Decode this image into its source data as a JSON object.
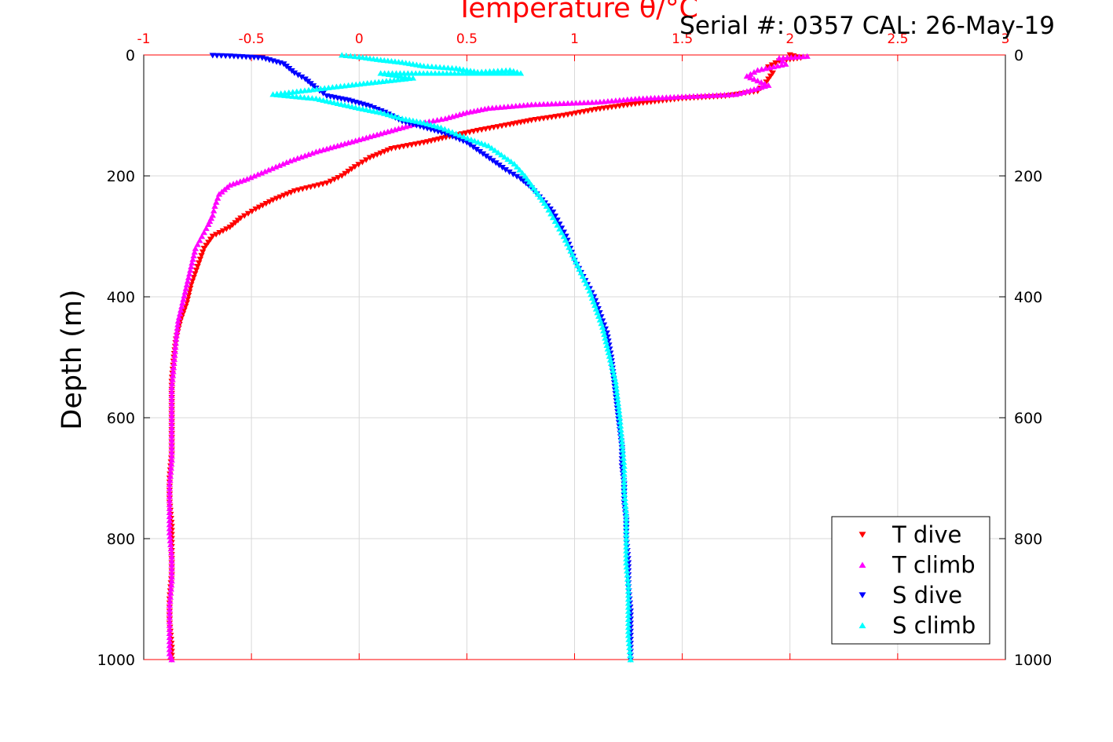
{
  "chart_data": {
    "type": "scatter",
    "title": "Temperature θ/°C",
    "annotation": "Serial #: 0357  CAL: 26-May-19",
    "xlabel": "Temperature θ/°C",
    "ylabel": "Depth (m)",
    "xlim": [
      -1,
      3
    ],
    "ylim": [
      0,
      1000
    ],
    "y_reversed": true,
    "grid": true,
    "legend_position": "bottom-right",
    "x_ticks": [
      "-1",
      "-0.5",
      "0",
      "0.5",
      "1",
      "1.5",
      "2",
      "2.5",
      "3"
    ],
    "y_ticks": [
      "0",
      "200",
      "400",
      "600",
      "800",
      "1000"
    ],
    "colors": {
      "t_axis": "#ff0000",
      "t_dive": "#ff0000",
      "t_climb": "#ff00ff",
      "s_dive": "#0000ff",
      "s_climb": "#00ffff"
    },
    "series": [
      {
        "name": "T dive",
        "marker": "triangle-down",
        "color": "#ff0000",
        "points": [
          [
            2.0,
            0
          ],
          [
            2.05,
            5
          ],
          [
            1.95,
            10
          ],
          [
            1.9,
            20
          ],
          [
            1.92,
            30
          ],
          [
            1.9,
            40
          ],
          [
            1.88,
            50
          ],
          [
            1.85,
            60
          ],
          [
            1.7,
            68
          ],
          [
            1.5,
            72
          ],
          [
            1.3,
            80
          ],
          [
            1.1,
            90
          ],
          [
            0.95,
            100
          ],
          [
            0.8,
            108
          ],
          [
            0.7,
            115
          ],
          [
            0.55,
            125
          ],
          [
            0.42,
            135
          ],
          [
            0.3,
            145
          ],
          [
            0.15,
            155
          ],
          [
            0.05,
            170
          ],
          [
            -0.02,
            185
          ],
          [
            -0.08,
            200
          ],
          [
            -0.15,
            212
          ],
          [
            -0.3,
            225
          ],
          [
            -0.4,
            240
          ],
          [
            -0.48,
            255
          ],
          [
            -0.55,
            270
          ],
          [
            -0.6,
            285
          ],
          [
            -0.68,
            300
          ],
          [
            -0.72,
            320
          ],
          [
            -0.75,
            350
          ],
          [
            -0.78,
            380
          ],
          [
            -0.8,
            410
          ],
          [
            -0.83,
            440
          ],
          [
            -0.85,
            470
          ],
          [
            -0.86,
            500
          ],
          [
            -0.87,
            540
          ],
          [
            -0.87,
            580
          ],
          [
            -0.87,
            620
          ],
          [
            -0.87,
            660
          ],
          [
            -0.88,
            700
          ],
          [
            -0.88,
            740
          ],
          [
            -0.87,
            780
          ],
          [
            -0.87,
            820
          ],
          [
            -0.87,
            860
          ],
          [
            -0.88,
            900
          ],
          [
            -0.88,
            940
          ],
          [
            -0.87,
            980
          ],
          [
            -0.87,
            1000
          ]
        ]
      },
      {
        "name": "T climb",
        "marker": "triangle-up",
        "color": "#ff00ff",
        "points": [
          [
            2.08,
            2
          ],
          [
            1.95,
            5
          ],
          [
            1.98,
            15
          ],
          [
            1.85,
            25
          ],
          [
            1.8,
            35
          ],
          [
            1.9,
            50
          ],
          [
            1.75,
            65
          ],
          [
            1.3,
            72
          ],
          [
            1.1,
            78
          ],
          [
            0.8,
            82
          ],
          [
            0.6,
            88
          ],
          [
            0.5,
            95
          ],
          [
            0.4,
            105
          ],
          [
            0.25,
            115
          ],
          [
            0.1,
            130
          ],
          [
            -0.05,
            145
          ],
          [
            -0.2,
            160
          ],
          [
            -0.32,
            175
          ],
          [
            -0.42,
            190
          ],
          [
            -0.52,
            205
          ],
          [
            -0.6,
            215
          ],
          [
            -0.65,
            230
          ],
          [
            -0.67,
            250
          ],
          [
            -0.68,
            265
          ],
          [
            -0.7,
            280
          ],
          [
            -0.73,
            300
          ],
          [
            -0.76,
            320
          ],
          [
            -0.78,
            350
          ],
          [
            -0.8,
            380
          ],
          [
            -0.82,
            410
          ],
          [
            -0.84,
            440
          ],
          [
            -0.85,
            470
          ],
          [
            -0.86,
            510
          ],
          [
            -0.87,
            550
          ],
          [
            -0.87,
            590
          ],
          [
            -0.87,
            630
          ],
          [
            -0.87,
            670
          ],
          [
            -0.88,
            710
          ],
          [
            -0.88,
            750
          ],
          [
            -0.88,
            790
          ],
          [
            -0.87,
            830
          ],
          [
            -0.87,
            870
          ],
          [
            -0.88,
            910
          ],
          [
            -0.88,
            950
          ],
          [
            -0.88,
            990
          ],
          [
            -0.87,
            1000
          ]
        ]
      },
      {
        "name": "S dive",
        "marker": "triangle-down",
        "color": "#0000ff",
        "points": [
          [
            -0.68,
            1
          ],
          [
            -0.6,
            2
          ],
          [
            -0.45,
            5
          ],
          [
            -0.35,
            15
          ],
          [
            -0.3,
            30
          ],
          [
            -0.25,
            40
          ],
          [
            -0.2,
            55
          ],
          [
            -0.15,
            68
          ],
          [
            -0.05,
            75
          ],
          [
            0.05,
            85
          ],
          [
            0.12,
            95
          ],
          [
            0.2,
            110
          ],
          [
            0.3,
            120
          ],
          [
            0.4,
            130
          ],
          [
            0.5,
            145
          ],
          [
            0.56,
            160
          ],
          [
            0.62,
            175
          ],
          [
            0.68,
            190
          ],
          [
            0.75,
            205
          ],
          [
            0.8,
            220
          ],
          [
            0.85,
            240
          ],
          [
            0.9,
            260
          ],
          [
            0.93,
            280
          ],
          [
            0.96,
            300
          ],
          [
            0.98,
            320
          ],
          [
            1.0,
            340
          ],
          [
            1.03,
            360
          ],
          [
            1.06,
            380
          ],
          [
            1.09,
            400
          ],
          [
            1.11,
            420
          ],
          [
            1.13,
            440
          ],
          [
            1.15,
            460
          ],
          [
            1.16,
            480
          ],
          [
            1.17,
            500
          ],
          [
            1.18,
            530
          ],
          [
            1.19,
            560
          ],
          [
            1.2,
            590
          ],
          [
            1.21,
            620
          ],
          [
            1.22,
            650
          ],
          [
            1.22,
            680
          ],
          [
            1.23,
            710
          ],
          [
            1.23,
            740
          ],
          [
            1.24,
            770
          ],
          [
            1.24,
            800
          ],
          [
            1.25,
            840
          ],
          [
            1.25,
            880
          ],
          [
            1.26,
            920
          ],
          [
            1.26,
            960
          ],
          [
            1.26,
            1000
          ]
        ]
      },
      {
        "name": "S climb",
        "marker": "triangle-up",
        "color": "#00ffff",
        "points": [
          [
            -0.08,
            0
          ],
          [
            0.0,
            3
          ],
          [
            0.1,
            8
          ],
          [
            0.2,
            12
          ],
          [
            0.3,
            18
          ],
          [
            0.45,
            22
          ],
          [
            0.55,
            28
          ],
          [
            0.7,
            25
          ],
          [
            0.75,
            30
          ],
          [
            0.1,
            30
          ],
          [
            0.25,
            38
          ],
          [
            -0.05,
            50
          ],
          [
            -0.4,
            65
          ],
          [
            -0.2,
            72
          ],
          [
            -0.1,
            80
          ],
          [
            0.0,
            88
          ],
          [
            0.1,
            95
          ],
          [
            0.2,
            105
          ],
          [
            0.3,
            112
          ],
          [
            0.38,
            120
          ],
          [
            0.45,
            130
          ],
          [
            0.52,
            140
          ],
          [
            0.6,
            150
          ],
          [
            0.66,
            165
          ],
          [
            0.72,
            180
          ],
          [
            0.77,
            200
          ],
          [
            0.82,
            225
          ],
          [
            0.87,
            250
          ],
          [
            0.91,
            275
          ],
          [
            0.95,
            300
          ],
          [
            0.99,
            330
          ],
          [
            1.03,
            360
          ],
          [
            1.07,
            390
          ],
          [
            1.1,
            420
          ],
          [
            1.13,
            450
          ],
          [
            1.15,
            480
          ],
          [
            1.17,
            510
          ],
          [
            1.19,
            540
          ],
          [
            1.2,
            570
          ],
          [
            1.21,
            600
          ],
          [
            1.22,
            640
          ],
          [
            1.23,
            680
          ],
          [
            1.23,
            720
          ],
          [
            1.24,
            760
          ],
          [
            1.24,
            800
          ],
          [
            1.24,
            840
          ],
          [
            1.25,
            880
          ],
          [
            1.25,
            920
          ],
          [
            1.25,
            960
          ],
          [
            1.26,
            1000
          ]
        ]
      }
    ]
  }
}
